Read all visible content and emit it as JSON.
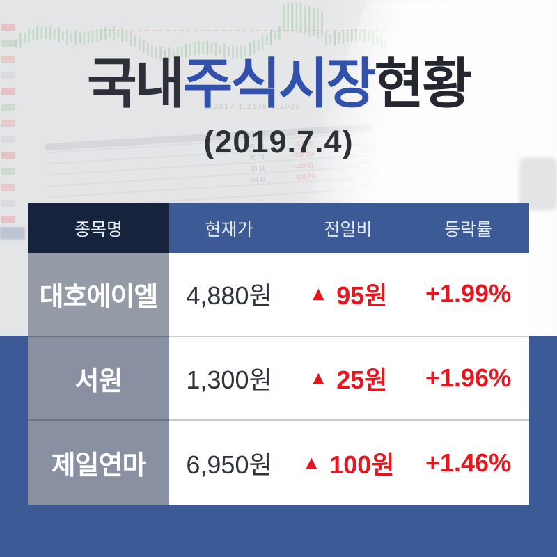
{
  "title": {
    "prefix": "국내",
    "highlight": "주식시장",
    "suffix": "현황",
    "date": "(2019.7.4)"
  },
  "colors": {
    "accent_blue": "#3C5A95",
    "dark_navy": "#16233C",
    "up_red": "#E8151E",
    "name_cell_gray": "#8F94A1",
    "row_white": "#FFFFFF"
  },
  "table": {
    "headers": [
      "종목명",
      "현재가",
      "전일비",
      "등락률"
    ],
    "rows": [
      {
        "name": "대호에이엘",
        "price": "4,880원",
        "direction": "▲",
        "change": "95원",
        "rate": "+1.99%"
      },
      {
        "name": "서원",
        "price": "1,300원",
        "direction": "▲",
        "change": "25원",
        "rate": "+1.96%"
      },
      {
        "name": "제일연마",
        "price": "6,950원",
        "direction": "▲",
        "change": "100원",
        "rate": "+1.46%"
      }
    ]
  },
  "background_photo": {
    "ticker_strip": "1.2017   1.2105   1.2026",
    "gray_numbers": "45.74\n30.11\n30.11\n20.11",
    "red_numbers": "-133.0\n-116.23\n-119.21\n-118.73",
    "red_numbers_right": "-118.23\n-116.23\n-119.23\n-118.23"
  }
}
